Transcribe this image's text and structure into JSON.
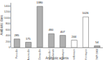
{
  "chart_data": {
    "type": "bar",
    "categories": [
      "Penicillin",
      "Amoxicillin",
      "Cloxacillin",
      "Amoxicillin /\nClavulanate",
      "Clindamycin",
      "Ciprofloxacin",
      "Erythromycin",
      "TMP-SMX"
    ],
    "values": [
      285,
      175,
      1380,
      460,
      407,
      244,
      1026,
      54
    ],
    "colors": [
      "#b0b0b0",
      "#b0b0b0",
      "#b0b0b0",
      "#b0b0b0",
      "#b0b0b0",
      "#ffffff",
      "#ffffff",
      "#b0b0b0"
    ],
    "xlabel": "Antibiotic agents",
    "ylabel": "Antibiotic days",
    "ylim": [
      0,
      1500
    ],
    "yticks": [
      0,
      200,
      400,
      600,
      800,
      1000,
      1200,
      1400
    ],
    "data_labels": true,
    "grid": false
  }
}
